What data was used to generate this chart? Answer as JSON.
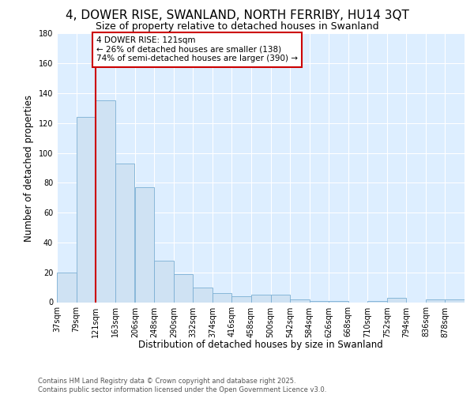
{
  "title1": "4, DOWER RISE, SWANLAND, NORTH FERRIBY, HU14 3QT",
  "title2": "Size of property relative to detached houses in Swanland",
  "xlabel": "Distribution of detached houses by size in Swanland",
  "ylabel": "Number of detached properties",
  "bins": [
    37,
    79,
    121,
    163,
    206,
    248,
    290,
    332,
    374,
    416,
    458,
    500,
    542,
    584,
    626,
    668,
    710,
    752,
    794,
    836,
    878
  ],
  "values": [
    20,
    124,
    135,
    93,
    77,
    28,
    19,
    10,
    6,
    4,
    5,
    5,
    2,
    1,
    1,
    0,
    1,
    3,
    0,
    2,
    2
  ],
  "bar_color": "#cfe2f3",
  "bar_edge_color": "#7bafd4",
  "vline_x": 121,
  "vline_color": "#cc0000",
  "annotation_text": "4 DOWER RISE: 121sqm\n← 26% of detached houses are smaller (138)\n74% of semi-detached houses are larger (390) →",
  "annotation_box_facecolor": "#ffffff",
  "annotation_box_edgecolor": "#cc0000",
  "ylim": [
    0,
    180
  ],
  "yticks": [
    0,
    20,
    40,
    60,
    80,
    100,
    120,
    140,
    160,
    180
  ],
  "footer": "Contains HM Land Registry data © Crown copyright and database right 2025.\nContains public sector information licensed under the Open Government Licence v3.0.",
  "fig_bg_color": "#ffffff",
  "plot_bg_color": "#ddeeff",
  "grid_color": "#ffffff",
  "title_fontsize": 11,
  "tick_fontsize": 7,
  "ylabel_fontsize": 8.5,
  "xlabel_fontsize": 8.5,
  "ann_fontsize": 7.5,
  "footer_fontsize": 6,
  "bin_width": 42
}
